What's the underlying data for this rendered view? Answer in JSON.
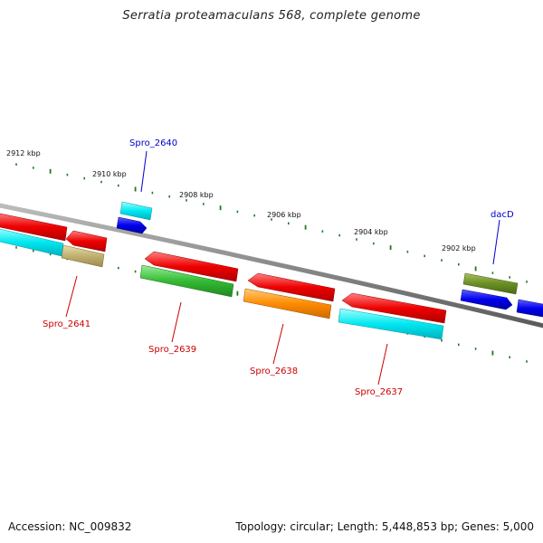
{
  "title": "Serratia proteamaculans 568, complete genome",
  "footer": {
    "accession": "Accession: NC_009832",
    "summary": "Topology: circular; Length: 5,448,853 bp; Genes: 5,000"
  },
  "colors": {
    "backbone": "#8a8a8a",
    "tick": "#1e7a1e",
    "tick_label": "#111111",
    "label_plus": "#0000cc",
    "label_minus": "#cc0000",
    "red": "#ee0000",
    "cyan": "#00e0e8",
    "khaki": "#c0b070",
    "blue": "#0000ee",
    "green": "#33bb33",
    "orange": "#ff8c00",
    "olive": "#6b8e23"
  },
  "scale": {
    "unit": "kbp",
    "labels": [
      "2912 kbp",
      "2910 kbp",
      "2908 kbp",
      "2906 kbp",
      "2904 kbp",
      "2902 kbp"
    ]
  },
  "genes": [
    {
      "name": "Spro_2640",
      "strand": "+",
      "color": "cyan"
    },
    {
      "name": "dacD",
      "strand": "+",
      "color": "olive"
    },
    {
      "name": "Spro_2641",
      "strand": "-",
      "color": "khaki"
    },
    {
      "name": "Spro_2639",
      "strand": "-",
      "color": "green"
    },
    {
      "name": "Spro_2638",
      "strand": "-",
      "color": "orange"
    },
    {
      "name": "Spro_2637",
      "strand": "-",
      "color": "cyan"
    }
  ]
}
